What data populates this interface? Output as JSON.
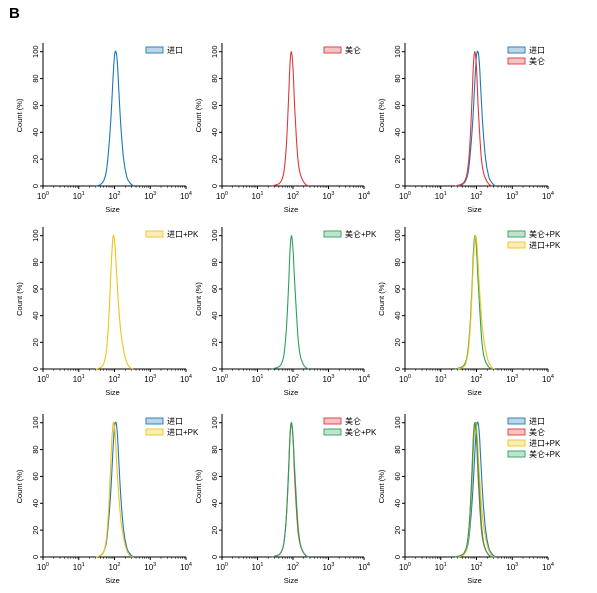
{
  "figure_label": "B",
  "colors": {
    "import": "#1f77b4",
    "meilun": "#e0383b",
    "import_pk": "#f0c31a",
    "meilun_pk": "#2ca05a"
  },
  "chart_data": [
    {
      "type": "line",
      "xlabel": "Size",
      "ylabel": "Count (%)",
      "xscale": "log",
      "xlim": [
        1,
        10000
      ],
      "ylim": [
        0,
        105
      ],
      "xticks": [
        "10^0",
        "10^1",
        "10^2",
        "10^3",
        "10^4"
      ],
      "yticks": [
        0,
        20,
        40,
        60,
        80,
        100
      ],
      "legend_position": "top-right",
      "series": [
        {
          "name": "进口",
          "color": "#1f77b4",
          "x": [
            30,
            40,
            50,
            60,
            70,
            80,
            90,
            100,
            110,
            120,
            130,
            150,
            180,
            220,
            260,
            300,
            350
          ],
          "y": [
            0,
            1,
            4,
            12,
            30,
            52,
            78,
            97,
            100,
            92,
            75,
            45,
            20,
            7,
            3,
            1,
            0
          ]
        }
      ]
    },
    {
      "type": "line",
      "xlabel": "Size",
      "ylabel": "Count (%)",
      "xscale": "log",
      "xlim": [
        1,
        10000
      ],
      "ylim": [
        0,
        105
      ],
      "xticks": [
        "10^0",
        "10^1",
        "10^2",
        "10^3",
        "10^4"
      ],
      "yticks": [
        0,
        20,
        40,
        60,
        80,
        100
      ],
      "legend_position": "top-right",
      "series": [
        {
          "name": "美仑",
          "color": "#e0383b",
          "x": [
            25,
            35,
            45,
            55,
            65,
            75,
            82,
            90,
            100,
            110,
            125,
            140,
            160,
            190,
            230,
            280
          ],
          "y": [
            0,
            1,
            3,
            10,
            30,
            65,
            90,
            100,
            88,
            62,
            35,
            18,
            9,
            4,
            1,
            0
          ]
        }
      ]
    },
    {
      "type": "line",
      "xlabel": "Size",
      "ylabel": "Count (%)",
      "xscale": "log",
      "xlim": [
        1,
        10000
      ],
      "ylim": [
        0,
        105
      ],
      "xticks": [
        "10^0",
        "10^1",
        "10^2",
        "10^3",
        "10^4"
      ],
      "yticks": [
        0,
        20,
        40,
        60,
        80,
        100
      ],
      "legend_position": "top-right",
      "series": [
        {
          "name": "进口",
          "color": "#1f77b4",
          "x": [
            30,
            40,
            50,
            60,
            70,
            80,
            90,
            100,
            110,
            120,
            130,
            150,
            180,
            220,
            260,
            300,
            350
          ],
          "y": [
            0,
            1,
            4,
            12,
            30,
            52,
            78,
            97,
            100,
            92,
            75,
            45,
            20,
            7,
            3,
            1,
            0
          ]
        },
        {
          "name": "美仑",
          "color": "#e0383b",
          "x": [
            25,
            35,
            45,
            55,
            65,
            75,
            82,
            90,
            100,
            110,
            125,
            140,
            160,
            190,
            230,
            280
          ],
          "y": [
            0,
            1,
            3,
            10,
            30,
            65,
            90,
            100,
            88,
            62,
            35,
            18,
            9,
            4,
            1,
            0
          ]
        }
      ]
    },
    {
      "type": "line",
      "xlabel": "Size",
      "ylabel": "Count (%)",
      "xscale": "log",
      "xlim": [
        1,
        10000
      ],
      "ylim": [
        0,
        105
      ],
      "xticks": [
        "10^0",
        "10^1",
        "10^2",
        "10^3",
        "10^4"
      ],
      "yticks": [
        0,
        20,
        40,
        60,
        80,
        100
      ],
      "legend_position": "top-right",
      "series": [
        {
          "name": "进口+PK",
          "color": "#f0c31a",
          "x": [
            30,
            40,
            50,
            60,
            70,
            80,
            88,
            95,
            105,
            115,
            130,
            150,
            180,
            220,
            270,
            320
          ],
          "y": [
            0,
            1,
            4,
            15,
            40,
            75,
            95,
            100,
            90,
            70,
            48,
            28,
            14,
            5,
            1,
            0
          ]
        }
      ]
    },
    {
      "type": "line",
      "xlabel": "Size",
      "ylabel": "Count (%)",
      "xscale": "log",
      "xlim": [
        1,
        10000
      ],
      "ylim": [
        0,
        105
      ],
      "xticks": [
        "10^0",
        "10^1",
        "10^2",
        "10^3",
        "10^4"
      ],
      "yticks": [
        0,
        20,
        40,
        60,
        80,
        100
      ],
      "legend_position": "top-right",
      "series": [
        {
          "name": "美仑+PK",
          "color": "#2ca05a",
          "x": [
            25,
            35,
            45,
            55,
            65,
            75,
            82,
            90,
            100,
            110,
            125,
            140,
            160,
            190,
            230,
            280
          ],
          "y": [
            0,
            1,
            3,
            10,
            30,
            62,
            88,
            100,
            90,
            68,
            42,
            22,
            10,
            4,
            1,
            0
          ]
        }
      ]
    },
    {
      "type": "line",
      "xlabel": "Size",
      "ylabel": "Count (%)",
      "xscale": "log",
      "xlim": [
        1,
        10000
      ],
      "ylim": [
        0,
        105
      ],
      "xticks": [
        "10^0",
        "10^1",
        "10^2",
        "10^3",
        "10^4"
      ],
      "yticks": [
        0,
        20,
        40,
        60,
        80,
        100
      ],
      "legend_position": "top-right",
      "series": [
        {
          "name": "美仑+PK",
          "color": "#2ca05a",
          "x": [
            25,
            35,
            45,
            55,
            65,
            75,
            82,
            90,
            100,
            110,
            125,
            140,
            160,
            190,
            230,
            280
          ],
          "y": [
            0,
            1,
            3,
            10,
            30,
            62,
            88,
            100,
            90,
            68,
            42,
            22,
            10,
            4,
            1,
            0
          ]
        },
        {
          "name": "进口+PK",
          "color": "#f0c31a",
          "x": [
            30,
            40,
            50,
            60,
            70,
            80,
            88,
            95,
            105,
            115,
            130,
            150,
            180,
            220,
            270,
            320
          ],
          "y": [
            0,
            1,
            4,
            15,
            40,
            75,
            95,
            100,
            90,
            70,
            48,
            28,
            14,
            5,
            1,
            0
          ]
        }
      ]
    },
    {
      "type": "line",
      "xlabel": "Size",
      "ylabel": "Count (%)",
      "xscale": "log",
      "xlim": [
        1,
        10000
      ],
      "ylim": [
        0,
        105
      ],
      "xticks": [
        "10^0",
        "10^1",
        "10^2",
        "10^3",
        "10^4"
      ],
      "yticks": [
        0,
        20,
        40,
        60,
        80,
        100
      ],
      "legend_position": "top-right",
      "series": [
        {
          "name": "进口",
          "color": "#1f77b4",
          "x": [
            30,
            40,
            50,
            60,
            70,
            80,
            90,
            100,
            110,
            120,
            130,
            150,
            180,
            220,
            260,
            300,
            350
          ],
          "y": [
            0,
            1,
            4,
            12,
            30,
            52,
            78,
            97,
            100,
            92,
            75,
            45,
            20,
            7,
            3,
            1,
            0
          ]
        },
        {
          "name": "进口+PK",
          "color": "#f0c31a",
          "x": [
            30,
            40,
            50,
            60,
            70,
            80,
            88,
            95,
            105,
            115,
            130,
            150,
            180,
            220,
            270,
            320
          ],
          "y": [
            0,
            1,
            4,
            15,
            40,
            75,
            95,
            100,
            90,
            70,
            48,
            28,
            14,
            5,
            1,
            0
          ]
        }
      ]
    },
    {
      "type": "line",
      "xlabel": "Size",
      "ylabel": "Count (%)",
      "xscale": "log",
      "xlim": [
        1,
        10000
      ],
      "ylim": [
        0,
        105
      ],
      "xticks": [
        "10^0",
        "10^1",
        "10^2",
        "10^3",
        "10^4"
      ],
      "yticks": [
        0,
        20,
        40,
        60,
        80,
        100
      ],
      "legend_position": "top-right",
      "series": [
        {
          "name": "美仑",
          "color": "#e0383b",
          "x": [
            25,
            35,
            45,
            55,
            65,
            75,
            82,
            90,
            100,
            110,
            125,
            140,
            160,
            190,
            230,
            280
          ],
          "y": [
            0,
            1,
            3,
            10,
            30,
            65,
            90,
            100,
            88,
            62,
            35,
            18,
            9,
            4,
            1,
            0
          ]
        },
        {
          "name": "美仑+PK",
          "color": "#2ca05a",
          "x": [
            25,
            35,
            45,
            55,
            65,
            75,
            82,
            90,
            100,
            110,
            125,
            140,
            160,
            190,
            230,
            280
          ],
          "y": [
            0,
            1,
            3,
            10,
            30,
            62,
            88,
            100,
            90,
            68,
            42,
            22,
            10,
            4,
            1,
            0
          ]
        }
      ]
    },
    {
      "type": "line",
      "xlabel": "Size",
      "ylabel": "Count (%)",
      "xscale": "log",
      "xlim": [
        1,
        10000
      ],
      "ylim": [
        0,
        105
      ],
      "xticks": [
        "10^0",
        "10^1",
        "10^2",
        "10^3",
        "10^4"
      ],
      "yticks": [
        0,
        20,
        40,
        60,
        80,
        100
      ],
      "legend_position": "top-right",
      "series": [
        {
          "name": "进口",
          "color": "#1f77b4",
          "x": [
            30,
            40,
            50,
            60,
            70,
            80,
            90,
            100,
            110,
            120,
            130,
            150,
            180,
            220,
            260,
            300,
            350
          ],
          "y": [
            0,
            1,
            4,
            12,
            30,
            52,
            78,
            97,
            100,
            92,
            75,
            45,
            20,
            7,
            3,
            1,
            0
          ]
        },
        {
          "name": "美仑",
          "color": "#e0383b",
          "x": [
            25,
            35,
            45,
            55,
            65,
            75,
            82,
            90,
            100,
            110,
            125,
            140,
            160,
            190,
            230,
            280
          ],
          "y": [
            0,
            1,
            3,
            10,
            30,
            65,
            90,
            100,
            88,
            62,
            35,
            18,
            9,
            4,
            1,
            0
          ]
        },
        {
          "name": "进口+PK",
          "color": "#f0c31a",
          "x": [
            30,
            40,
            50,
            60,
            70,
            80,
            88,
            95,
            105,
            115,
            130,
            150,
            180,
            220,
            270,
            320
          ],
          "y": [
            0,
            1,
            4,
            15,
            40,
            75,
            95,
            100,
            90,
            70,
            48,
            28,
            14,
            5,
            1,
            0
          ]
        },
        {
          "name": "美仑+PK",
          "color": "#2ca05a",
          "x": [
            25,
            35,
            45,
            55,
            65,
            75,
            82,
            90,
            100,
            110,
            125,
            140,
            160,
            190,
            230,
            280
          ],
          "y": [
            0,
            1,
            3,
            10,
            30,
            62,
            88,
            100,
            90,
            68,
            42,
            22,
            10,
            4,
            1,
            0
          ]
        }
      ]
    }
  ]
}
